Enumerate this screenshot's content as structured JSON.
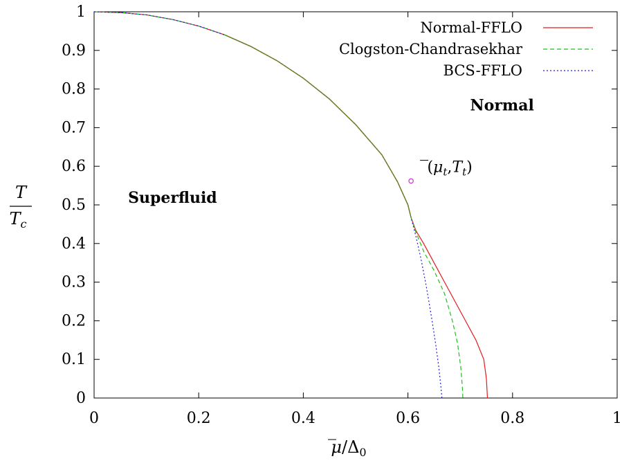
{
  "chart_data": {
    "type": "line",
    "title": "",
    "xlabel": {
      "base": "μ",
      "bar": true,
      "sep": "/",
      "rest": "Δ",
      "sub": "0"
    },
    "ylabel": {
      "numerator": "T",
      "denominator": "T",
      "denominator_sub": "c"
    },
    "xlim": [
      0,
      1
    ],
    "ylim": [
      0,
      1
    ],
    "x_ticks": [
      "0",
      "0.2",
      "0.4",
      "0.6",
      "0.8",
      "1"
    ],
    "y_ticks": [
      "0",
      "0.1",
      "0.2",
      "0.3",
      "0.4",
      "0.5",
      "0.6",
      "0.7",
      "0.8",
      "0.9",
      "1"
    ],
    "grid": false,
    "legend_position": "top-right",
    "series": [
      {
        "name": "Normal-FFLO",
        "color": "#e41a1c",
        "dash": "solid",
        "x": [
          0,
          0.05,
          0.1,
          0.15,
          0.2,
          0.25,
          0.3,
          0.35,
          0.4,
          0.45,
          0.5,
          0.55,
          0.58,
          0.6,
          0.606,
          0.615,
          0.63,
          0.65,
          0.67,
          0.69,
          0.71,
          0.73,
          0.745,
          0.75,
          0.752
        ],
        "y": [
          1.0,
          0.998,
          0.992,
          0.98,
          0.963,
          0.94,
          0.91,
          0.873,
          0.828,
          0.774,
          0.708,
          0.63,
          0.56,
          0.5,
          0.467,
          0.434,
          0.4,
          0.35,
          0.3,
          0.25,
          0.2,
          0.15,
          0.1,
          0.05,
          0.0
        ]
      },
      {
        "name": "Clogston-Chandrasekhar",
        "color": "#17c317",
        "dash": "dashed",
        "x": [
          0,
          0.05,
          0.1,
          0.15,
          0.2,
          0.25,
          0.3,
          0.35,
          0.4,
          0.45,
          0.5,
          0.55,
          0.58,
          0.6,
          0.606,
          0.615,
          0.63,
          0.65,
          0.67,
          0.685,
          0.695,
          0.701,
          0.704,
          0.705
        ],
        "y": [
          1.0,
          0.998,
          0.992,
          0.98,
          0.963,
          0.94,
          0.91,
          0.873,
          0.828,
          0.774,
          0.708,
          0.63,
          0.56,
          0.5,
          0.467,
          0.43,
          0.38,
          0.33,
          0.27,
          0.2,
          0.14,
          0.08,
          0.03,
          0.0
        ]
      },
      {
        "name": "BCS-FFLO",
        "color": "#1a1ae6",
        "dash": "dotted",
        "x": [
          0,
          0.05,
          0.1,
          0.15,
          0.2,
          0.25,
          0.3,
          0.35,
          0.4,
          0.45,
          0.5,
          0.55,
          0.58,
          0.6,
          0.606,
          0.615,
          0.625,
          0.635,
          0.645,
          0.653,
          0.659,
          0.663,
          0.665
        ],
        "y": [
          1.0,
          0.998,
          0.992,
          0.98,
          0.963,
          0.94,
          0.91,
          0.873,
          0.828,
          0.774,
          0.708,
          0.63,
          0.56,
          0.5,
          0.467,
          0.42,
          0.36,
          0.29,
          0.21,
          0.14,
          0.08,
          0.03,
          0.0
        ]
      }
    ],
    "point": {
      "x": 0.606,
      "y": 0.562,
      "color": "#cc33cc"
    },
    "annotations": [
      {
        "text": "Normal",
        "kind": "region",
        "x": 0.78,
        "y": 0.745
      },
      {
        "text": "Superfluid",
        "kind": "region",
        "x": 0.15,
        "y": 0.505
      },
      {
        "kind": "point-label",
        "x": 0.68,
        "y": 0.585,
        "parts": [
          "(",
          "μ",
          "t",
          ",",
          "T",
          "t",
          ")"
        ]
      }
    ]
  }
}
